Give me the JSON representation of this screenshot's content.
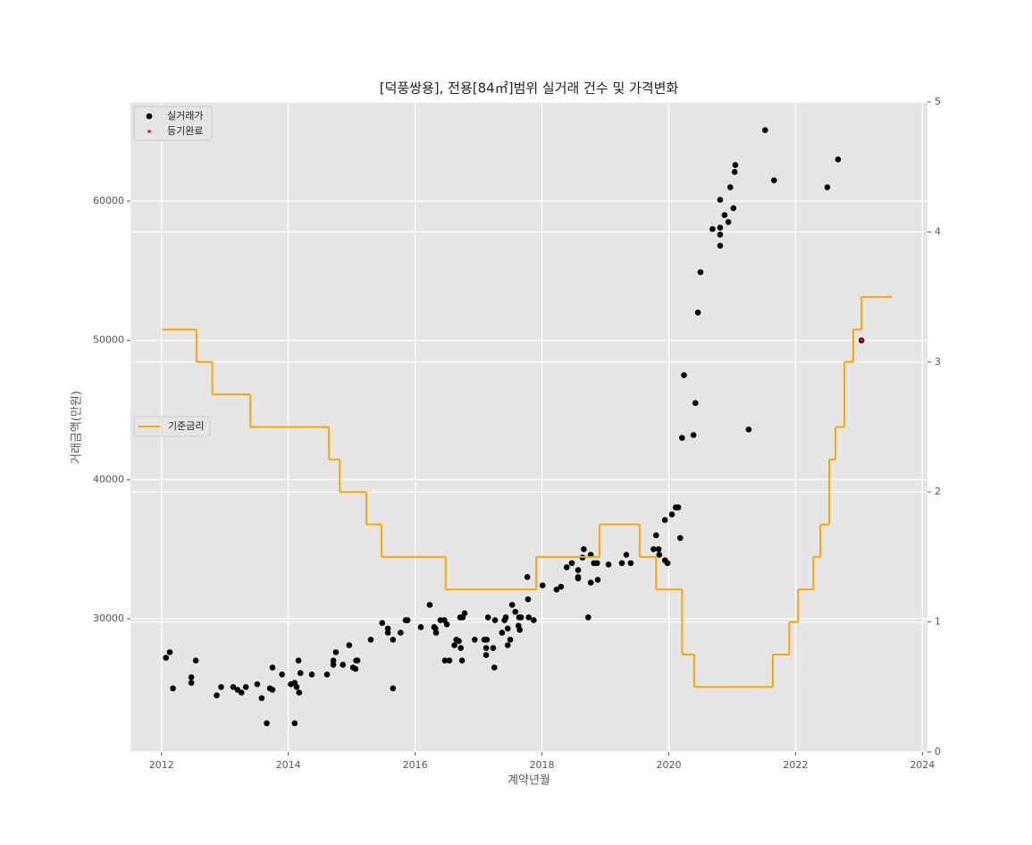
{
  "chart_data": {
    "type": "scatter",
    "title": "[덕풍쌍용], 전용[84㎡]범위 실거래 건수 및 가격변화",
    "xlabel": "계약년월",
    "ylabel": "거래금액(만원)",
    "xlim": [
      2011.51,
      2024.08
    ],
    "xticks": [
      2012,
      2014,
      2016,
      2018,
      2020,
      2022,
      2024
    ],
    "ylim": [
      20430,
      67130
    ],
    "yticks": [
      30000,
      40000,
      50000,
      60000
    ],
    "y2lim": [
      0,
      5
    ],
    "y2ticks": [
      0,
      1,
      2,
      3,
      4,
      5
    ],
    "grid": true,
    "legend": "upper left",
    "series": [
      {
        "name": "실거래가",
        "color": "#000000",
        "marker": "circle",
        "x": [
          2012.07,
          2012.13,
          2012.18,
          2012.47,
          2012.47,
          2012.54,
          2012.87,
          2012.94,
          2013.13,
          2013.2,
          2013.26,
          2013.33,
          2013.51,
          2013.58,
          2013.66,
          2013.71,
          2013.75,
          2013.75,
          2013.9,
          2014.04,
          2014.1,
          2014.13,
          2014.16,
          2014.17,
          2014.19,
          2014.1,
          2014.37,
          2014.61,
          2014.71,
          2014.71,
          2014.75,
          2014.86,
          2014.96,
          2015.02,
          2015.06,
          2015.07,
          2015.09,
          2015.3,
          2015.48,
          2015.57,
          2015.57,
          2015.65,
          2015.65,
          2015.77,
          2015.85,
          2015.88,
          2016.09,
          2016.23,
          2016.3,
          2016.32,
          2016.33,
          2016.4,
          2016.46,
          2016.47,
          2016.5,
          2016.54,
          2016.62,
          2016.65,
          2016.69,
          2016.72,
          2016.74,
          2016.71,
          2016.75,
          2016.78,
          2016.94,
          2017.09,
          2017.13,
          2017.12,
          2017.12,
          2017.15,
          2017.23,
          2017.25,
          2017.26,
          2017.37,
          2017.41,
          2017.43,
          2017.46,
          2017.46,
          2017.5,
          2017.53,
          2017.58,
          2017.63,
          2017.64,
          2017.65,
          2017.67,
          2017.77,
          2017.78,
          2017.79,
          2017.87,
          2018.01,
          2018.23,
          2018.3,
          2018.39,
          2018.47,
          2018.57,
          2018.57,
          2018.57,
          2018.66,
          2018.64,
          2018.73,
          2018.77,
          2018.77,
          2018.82,
          2018.87,
          2018.88,
          2019.05,
          2019.26,
          2019.33,
          2019.4,
          2019.76,
          2019.8,
          2019.84,
          2019.85,
          2019.94,
          2019.94,
          2019.98,
          2020.05,
          2020.11,
          2020.15,
          2020.18,
          2020.21,
          2020.24,
          2020.39,
          2020.42,
          2020.46,
          2020.5,
          2020.69,
          2020.81,
          2020.81,
          2020.81,
          2020.81,
          2020.88,
          2020.94,
          2020.97,
          2021.02,
          2021.04,
          2021.05,
          2021.26,
          2021.52,
          2021.66,
          2022.5,
          2022.67,
          2023.04
        ],
        "values": [
          27200,
          27600,
          25000,
          25800,
          25400,
          27000,
          24500,
          25100,
          25100,
          24900,
          24700,
          25100,
          25300,
          24300,
          22500,
          25000,
          24900,
          26500,
          26000,
          25300,
          25400,
          25100,
          27000,
          24700,
          26100,
          22500,
          26000,
          26000,
          27000,
          26700,
          27600,
          26700,
          28100,
          26500,
          26400,
          27000,
          27000,
          28500,
          29700,
          29300,
          29000,
          28500,
          25000,
          29000,
          29900,
          29900,
          29400,
          31000,
          29400,
          29300,
          29000,
          29900,
          29900,
          27000,
          29600,
          27000,
          28100,
          28500,
          28400,
          27900,
          27000,
          30100,
          30100,
          30400,
          28500,
          28500,
          28500,
          27900,
          27400,
          30100,
          27900,
          26500,
          29900,
          29000,
          29900,
          30100,
          29300,
          28100,
          28500,
          31000,
          30500,
          29500,
          30100,
          29200,
          30100,
          33000,
          31400,
          30100,
          29900,
          32400,
          32100,
          32300,
          33700,
          34000,
          33000,
          33500,
          32900,
          35000,
          34400,
          30100,
          34600,
          32600,
          34000,
          34000,
          32800,
          33900,
          34000,
          34600,
          34000,
          35000,
          36000,
          35000,
          34600,
          37100,
          34200,
          34000,
          37500,
          38000,
          38000,
          35800,
          43000,
          47500,
          43200,
          45500,
          52000,
          54900,
          58000,
          58100,
          57600,
          56800,
          60100,
          59000,
          58500,
          61000,
          59500,
          62100,
          62600,
          43600,
          65100,
          61500,
          61000,
          63000,
          50000
        ]
      },
      {
        "name": "등기완료",
        "color": "#ff0000",
        "marker": "star",
        "x": [
          2023.04
        ],
        "values": [
          50000
        ]
      },
      {
        "name": "기준금리",
        "color": "#ffa500",
        "type": "line",
        "drawstyle": "steps-post",
        "axis": "y2",
        "legend": "center left",
        "x": [
          2012.01,
          2012.55,
          2012.8,
          2013.4,
          2014.64,
          2014.81,
          2015.23,
          2015.47,
          2016.48,
          2017.91,
          2018.91,
          2019.54,
          2019.8,
          2020.21,
          2020.4,
          2021.64,
          2021.9,
          2022.04,
          2022.28,
          2022.39,
          2022.53,
          2022.63,
          2022.77,
          2022.91,
          2023.04,
          2023.52
        ],
        "values": [
          3.25,
          3.0,
          2.75,
          2.5,
          2.25,
          2.0,
          1.75,
          1.5,
          1.25,
          1.5,
          1.75,
          1.5,
          1.25,
          0.75,
          0.5,
          0.75,
          1.0,
          1.25,
          1.5,
          1.75,
          2.25,
          2.5,
          3.0,
          3.25,
          3.5,
          3.5
        ]
      }
    ]
  }
}
